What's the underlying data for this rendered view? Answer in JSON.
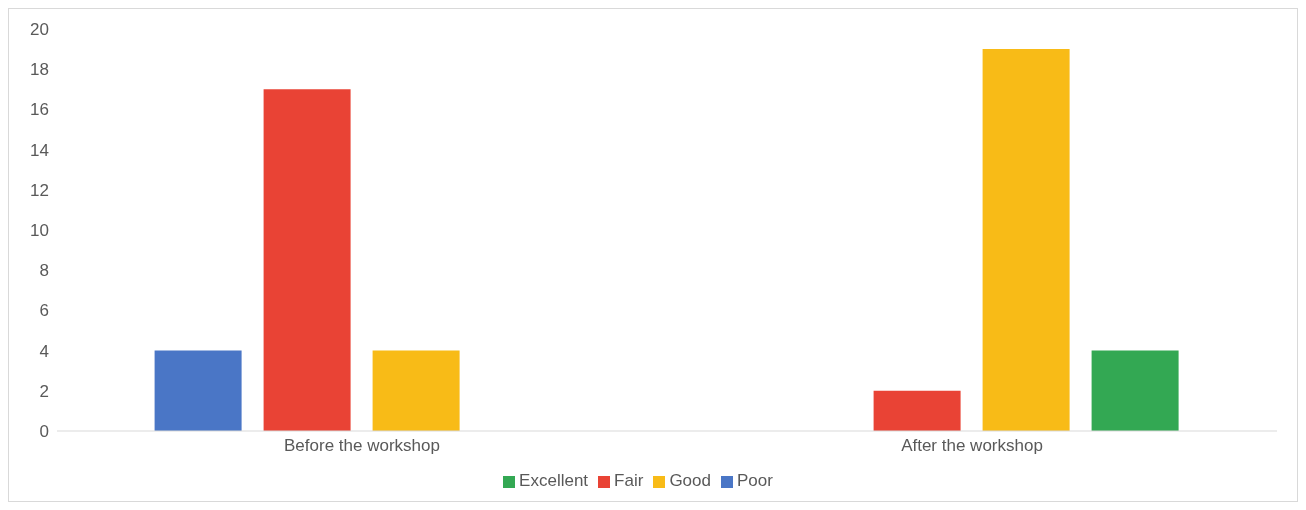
{
  "chart_data": {
    "type": "bar",
    "categories": [
      "Before the workshop",
      "After the workshop"
    ],
    "series": [
      {
        "name": "Poor",
        "color": "#4a76c6",
        "values": [
          4,
          0
        ]
      },
      {
        "name": "Fair",
        "color": "#e94335",
        "values": [
          17,
          2
        ]
      },
      {
        "name": "Good",
        "color": "#f8bb17",
        "values": [
          4,
          19
        ]
      },
      {
        "name": "Excellent",
        "color": "#33a853",
        "values": [
          0,
          4
        ]
      }
    ],
    "ylim": [
      0,
      20
    ],
    "yticks": [
      0,
      2,
      4,
      6,
      8,
      10,
      12,
      14,
      16,
      18,
      20
    ],
    "grid": false,
    "legend": "bottom"
  }
}
